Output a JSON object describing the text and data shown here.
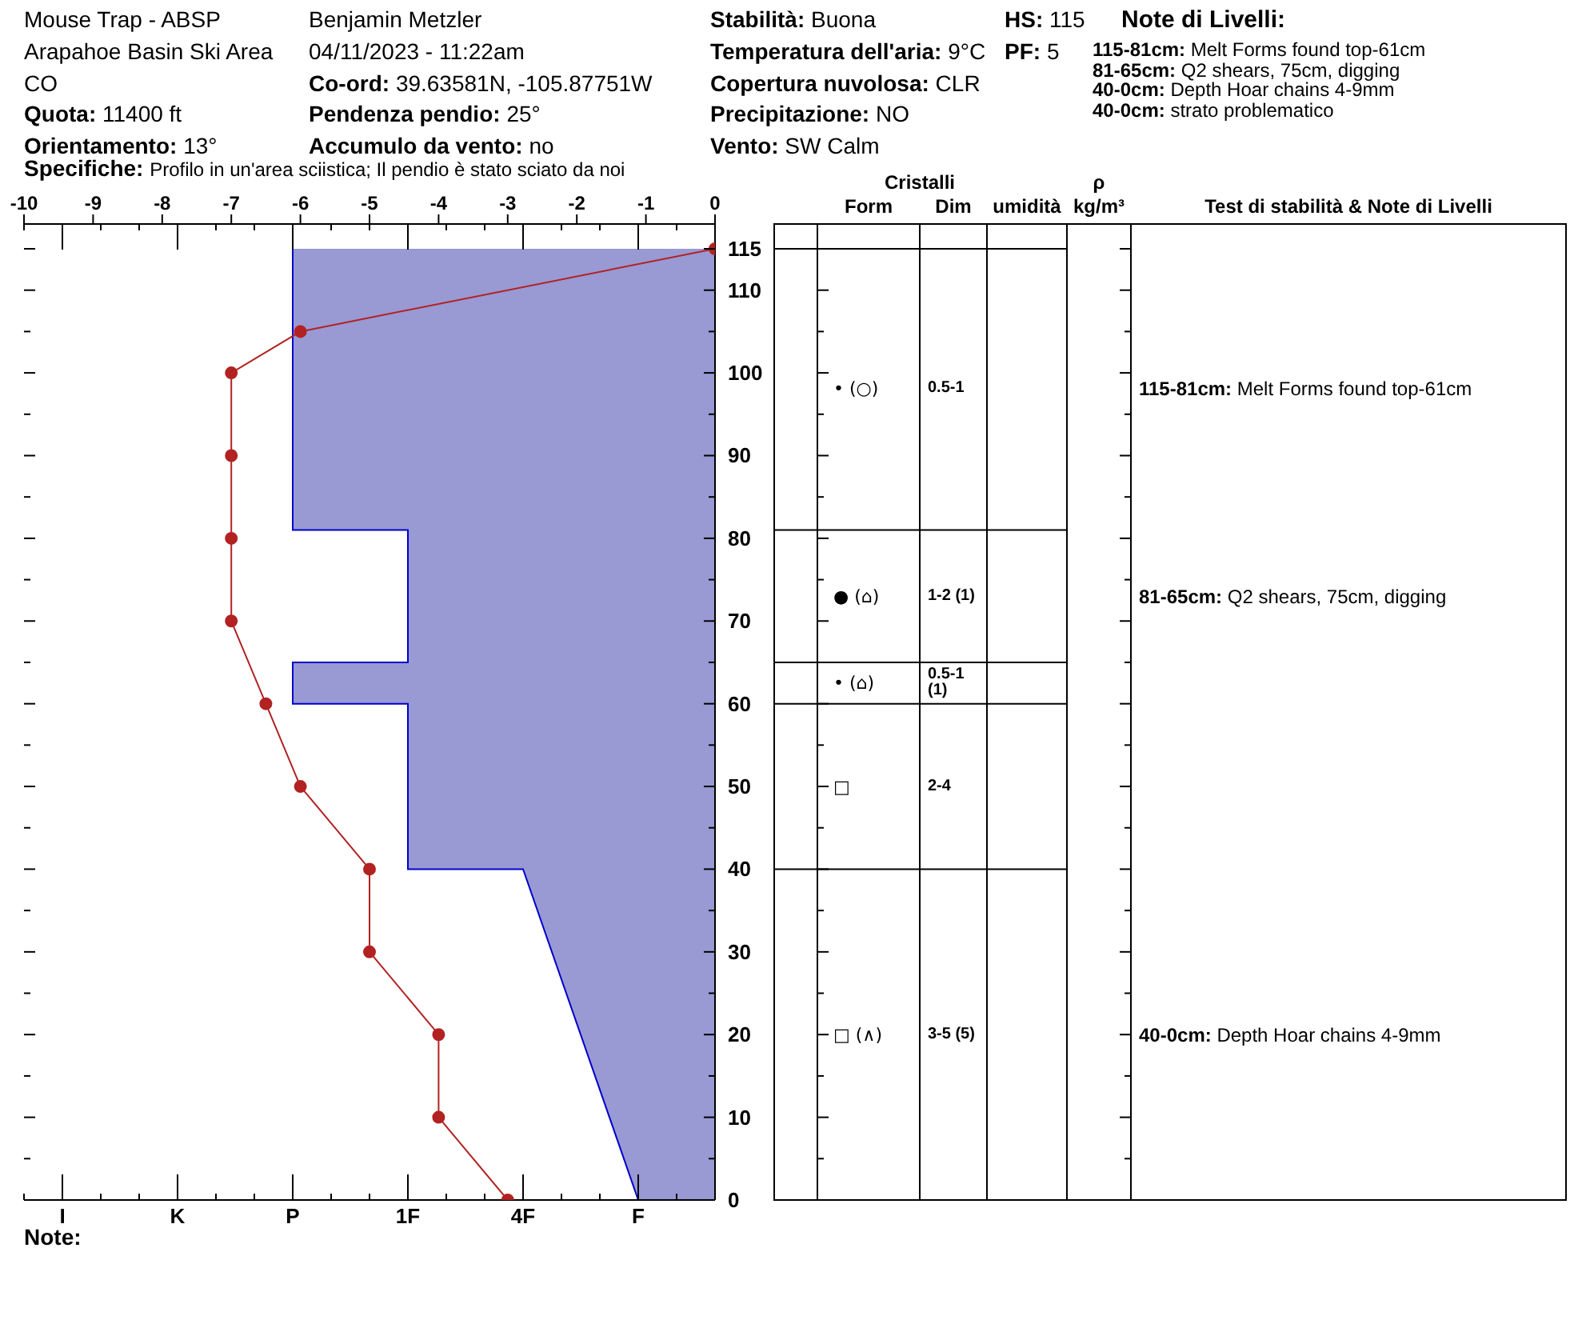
{
  "chart_data": [
    {
      "type": "other",
      "annotations": [
        "Mouse Trap - ABSP",
        "Arapahoe Basin Ski Area",
        "CO",
        "Quota: 11400 ft",
        "Orientamento: 13°",
        "Specifiche: Profilo in un'area sciistica; Il pendio è stato sciato da noi",
        "Benjamin Metzler",
        "04/11/2023 - 11:22am",
        "Co-ord: 39.63581N, -105.87751W",
        "Pendenza pendio: 25°",
        "Accumulo da vento: no",
        "Stabilità: Buona",
        "Temperatura dell'aria: 9°C",
        "Copertura nuvolosa: CLR",
        "Precipitazione: NO",
        "Vento: SW Calm",
        "HS: 115",
        "PF: 5",
        "Note di Livelli:",
        "115-81cm: Melt Forms found top-61cm",
        "81-65cm: Q2 shears, 75cm, digging",
        "40-0cm: Depth Hoar chains 4-9mm",
        "40-0cm: strato problematico"
      ]
    },
    {
      "type": "area",
      "categories": [
        "I",
        "K",
        "P",
        "1F",
        "4F",
        "F"
      ],
      "x2lim": [
        -10,
        0
      ],
      "x2ticks": [
        -10,
        -9,
        -8,
        -7,
        -6,
        -5,
        -4,
        -3,
        -2,
        -1,
        0
      ],
      "ylim": [
        0,
        118
      ],
      "yticks": [
        0,
        {
          "value": 5,
          "label": null
        },
        10,
        {
          "value": 15,
          "label": null
        },
        20,
        {
          "value": 25,
          "label": null
        },
        30,
        {
          "value": 35,
          "label": null
        },
        40,
        {
          "value": 45,
          "label": null
        },
        50,
        {
          "value": 55,
          "label": null
        },
        60,
        {
          "value": 65,
          "label": null
        },
        70,
        {
          "value": 75,
          "label": null
        },
        80,
        {
          "value": 85,
          "label": null
        },
        90,
        {
          "value": 95,
          "label": null
        },
        100,
        {
          "value": 105,
          "label": null
        },
        110,
        115
      ],
      "series": [
        {
          "type": "area",
          "color": "#9999d4",
          "x": [
            "P",
            "P",
            "1F",
            "1F",
            "P",
            "P",
            "1F",
            "1F",
            "4F",
            "F"
          ],
          "values": [
            115,
            81,
            81,
            65,
            65,
            60,
            60,
            40,
            40,
            0
          ]
        },
        {
          "type": "line",
          "axis": "x2",
          "color": "#b22222",
          "marker": "circle",
          "x": [
            0,
            -6,
            -7,
            -7,
            -7,
            -7,
            -6.5,
            -6,
            -5,
            -5,
            -4,
            -4,
            -3
          ],
          "values": [
            115,
            105,
            100,
            90,
            80,
            70,
            60,
            50,
            40,
            30,
            20,
            10,
            0
          ]
        }
      ],
      "annotations": [
        "Note:"
      ]
    },
    {
      "type": "other",
      "categories": [
        null,
        "Form",
        "Dim",
        "umidità",
        "ρ\nkg/m³",
        "Test di stabilità & Note di Livelli"
      ],
      "annotations": [
        "Cristalli",
        "• (○)",
        "0.5-1",
        "115-81cm: Melt Forms found top-61cm",
        "● (⌂)",
        "1-2 (1)",
        "81-65cm: Q2 shears, 75cm, digging",
        "• (⌂)",
        "0.5-1 (1)",
        "□",
        "2-4",
        "□ (∧)",
        "3-5 (5)",
        "40-0cm: Depth Hoar chains 4-9mm"
      ]
    }
  ]
}
